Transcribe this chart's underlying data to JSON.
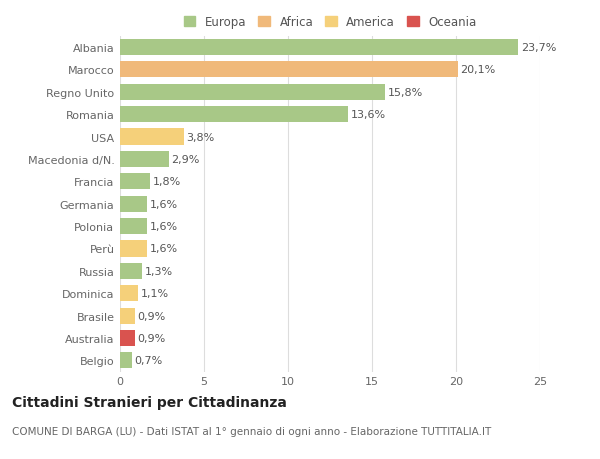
{
  "categories": [
    "Albania",
    "Marocco",
    "Regno Unito",
    "Romania",
    "USA",
    "Macedonia d/N.",
    "Francia",
    "Germania",
    "Polonia",
    "Perù",
    "Russia",
    "Dominica",
    "Brasile",
    "Australia",
    "Belgio"
  ],
  "values": [
    23.7,
    20.1,
    15.8,
    13.6,
    3.8,
    2.9,
    1.8,
    1.6,
    1.6,
    1.6,
    1.3,
    1.1,
    0.9,
    0.9,
    0.7
  ],
  "labels": [
    "23,7%",
    "20,1%",
    "15,8%",
    "13,6%",
    "3,8%",
    "2,9%",
    "1,8%",
    "1,6%",
    "1,6%",
    "1,6%",
    "1,3%",
    "1,1%",
    "0,9%",
    "0,9%",
    "0,7%"
  ],
  "colors": [
    "#a8c887",
    "#f0b97a",
    "#a8c887",
    "#a8c887",
    "#f5d07a",
    "#a8c887",
    "#a8c887",
    "#a8c887",
    "#a8c887",
    "#f5d07a",
    "#a8c887",
    "#f5d07a",
    "#f5d07a",
    "#d9534f",
    "#a8c887"
  ],
  "legend": [
    {
      "label": "Europa",
      "color": "#a8c887"
    },
    {
      "label": "Africa",
      "color": "#f0b97a"
    },
    {
      "label": "America",
      "color": "#f5d07a"
    },
    {
      "label": "Oceania",
      "color": "#d9534f"
    }
  ],
  "title": "Cittadini Stranieri per Cittadinanza",
  "subtitle": "COMUNE DI BARGA (LU) - Dati ISTAT al 1° gennaio di ogni anno - Elaborazione TUTTITALIA.IT",
  "xlim": [
    0,
    25
  ],
  "xticks": [
    0,
    5,
    10,
    15,
    20,
    25
  ],
  "background_color": "#ffffff",
  "grid_color": "#dddddd",
  "bar_height": 0.72,
  "label_fontsize": 8,
  "tick_fontsize": 8,
  "title_fontsize": 10,
  "subtitle_fontsize": 7.5
}
